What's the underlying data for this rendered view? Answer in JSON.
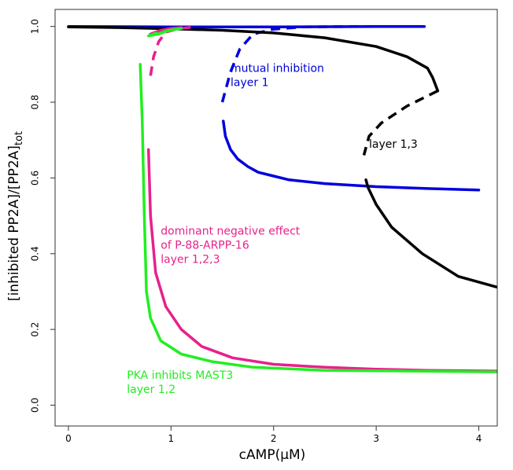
{
  "chart_data": {
    "type": "line",
    "xlabel": "cAMP(μM)",
    "ylabel": "[inhibited PP2A]/[PP2A]",
    "ylabel_subscript": "tot",
    "xlim": [
      -0.13,
      4.18
    ],
    "ylim": [
      -0.055,
      1.045
    ],
    "xticks": [
      0,
      1,
      2,
      3,
      4
    ],
    "yticks": [
      0.0,
      0.2,
      0.4,
      0.6,
      0.8,
      1.0
    ],
    "xtick_labels": [
      "0",
      "1",
      "2",
      "3",
      "4"
    ],
    "ytick_labels": [
      "0.0",
      "0.2",
      "0.4",
      "0.6",
      "0.8",
      "1.0"
    ],
    "grid": false,
    "legend": "none",
    "series": [
      {
        "color": "#0000dd",
        "annotation": [
          "mutual inhibition",
          "layer 1"
        ],
        "stable_upper": [
          [
            0,
            1.0
          ],
          [
            1.0,
            0.999
          ],
          [
            2.0,
            0.999
          ],
          [
            3.0,
            1.0
          ],
          [
            3.47,
            1.0
          ]
        ],
        "unstable": [
          [
            1.5,
            0.8
          ],
          [
            1.58,
            0.88
          ],
          [
            1.67,
            0.94
          ],
          [
            1.8,
            0.98
          ],
          [
            2.0,
            0.993
          ],
          [
            2.3,
            0.999
          ],
          [
            2.8,
            1.0
          ],
          [
            3.47,
            1.0
          ]
        ],
        "stable_lower": [
          [
            1.51,
            0.75
          ],
          [
            1.53,
            0.71
          ],
          [
            1.58,
            0.675
          ],
          [
            1.65,
            0.65
          ],
          [
            1.75,
            0.63
          ],
          [
            1.85,
            0.615
          ],
          [
            2.0,
            0.605
          ],
          [
            2.15,
            0.595
          ],
          [
            2.5,
            0.585
          ],
          [
            3.0,
            0.577
          ],
          [
            3.5,
            0.572
          ],
          [
            4.0,
            0.568
          ]
        ]
      },
      {
        "color": "#000000",
        "annotation": [
          "layer 1,3"
        ],
        "stable_upper": [
          [
            0,
            0.999
          ],
          [
            0.5,
            0.997
          ],
          [
            1.0,
            0.994
          ],
          [
            1.5,
            0.99
          ],
          [
            2.0,
            0.983
          ],
          [
            2.5,
            0.97
          ],
          [
            3.0,
            0.947
          ],
          [
            3.3,
            0.92
          ],
          [
            3.5,
            0.89
          ],
          [
            3.55,
            0.865
          ],
          [
            3.6,
            0.83
          ]
        ],
        "unstable": [
          [
            3.6,
            0.83
          ],
          [
            3.3,
            0.79
          ],
          [
            3.05,
            0.745
          ],
          [
            2.93,
            0.71
          ],
          [
            2.88,
            0.66
          ]
        ],
        "stable_lower": [
          [
            2.9,
            0.595
          ],
          [
            2.92,
            0.575
          ],
          [
            3.0,
            0.53
          ],
          [
            3.15,
            0.47
          ],
          [
            3.45,
            0.4
          ],
          [
            3.8,
            0.34
          ],
          [
            4.2,
            0.31
          ]
        ]
      },
      {
        "color": "#e8208c",
        "annotation": [
          "dominant negative effect",
          "of P-88-ARPP-16",
          "layer 1,2,3"
        ],
        "stable_upper": [
          [
            0.8,
            0.98
          ],
          [
            0.9,
            0.99
          ],
          [
            1.0,
            0.995
          ],
          [
            1.1,
            0.997
          ]
        ],
        "unstable": [
          [
            0.8,
            0.87
          ],
          [
            0.83,
            0.92
          ],
          [
            0.88,
            0.96
          ],
          [
            0.95,
            0.985
          ],
          [
            1.05,
            0.993
          ],
          [
            1.2,
            0.998
          ]
        ],
        "stable_lower": [
          [
            0.78,
            0.675
          ],
          [
            0.8,
            0.5
          ],
          [
            0.85,
            0.35
          ],
          [
            0.95,
            0.26
          ],
          [
            1.1,
            0.2
          ],
          [
            1.3,
            0.155
          ],
          [
            1.6,
            0.125
          ],
          [
            2.0,
            0.108
          ],
          [
            2.5,
            0.1
          ],
          [
            3.0,
            0.095
          ],
          [
            3.5,
            0.092
          ],
          [
            4.2,
            0.09
          ]
        ]
      },
      {
        "color": "#22ee22",
        "annotation": [
          "PKA inhibits MAST3",
          "layer 1,2"
        ],
        "stable_upper": [
          [
            0.78,
            0.975
          ],
          [
            0.88,
            0.98
          ],
          [
            0.98,
            0.99
          ],
          [
            1.1,
            0.995
          ]
        ],
        "unstable": [
          [
            0.78,
            0.975
          ],
          [
            0.88,
            0.985
          ],
          [
            1.0,
            0.99
          ]
        ],
        "stable_lower": [
          [
            0.7,
            0.9
          ],
          [
            0.72,
            0.75
          ],
          [
            0.74,
            0.5
          ],
          [
            0.76,
            0.3
          ],
          [
            0.8,
            0.23
          ],
          [
            0.9,
            0.17
          ],
          [
            1.1,
            0.135
          ],
          [
            1.4,
            0.115
          ],
          [
            1.8,
            0.1
          ],
          [
            2.5,
            0.092
          ],
          [
            3.3,
            0.09
          ],
          [
            4.2,
            0.088
          ]
        ]
      }
    ]
  }
}
